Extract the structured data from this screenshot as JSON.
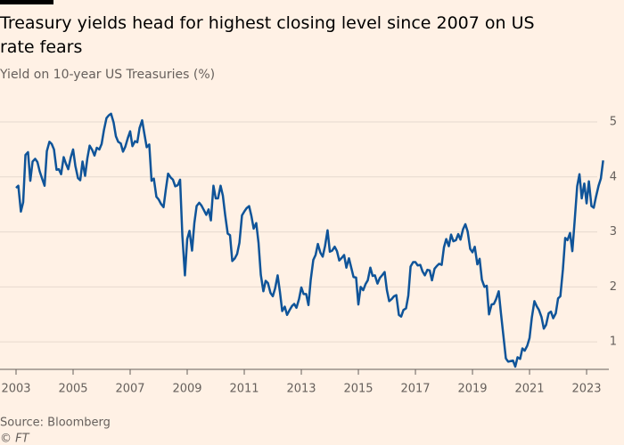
{
  "chart_data": {
    "type": "line",
    "title": "Treasury yields head for highest closing level since 2007 on US rate fears",
    "subtitle": "Yield on 10-year US Treasuries (%)",
    "source": "Source: Bloomberg",
    "credit": "© FT",
    "x": [
      2003.0,
      2003.08,
      2003.17,
      2003.25,
      2003.33,
      2003.42,
      2003.5,
      2003.58,
      2003.67,
      2003.75,
      2003.83,
      2003.92,
      2004.0,
      2004.08,
      2004.17,
      2004.25,
      2004.33,
      2004.42,
      2004.5,
      2004.58,
      2004.67,
      2004.75,
      2004.83,
      2004.92,
      2005.0,
      2005.08,
      2005.17,
      2005.25,
      2005.33,
      2005.42,
      2005.5,
      2005.58,
      2005.67,
      2005.75,
      2005.83,
      2005.92,
      2006.0,
      2006.08,
      2006.17,
      2006.25,
      2006.33,
      2006.42,
      2006.5,
      2006.58,
      2006.67,
      2006.75,
      2006.83,
      2006.92,
      2007.0,
      2007.08,
      2007.17,
      2007.25,
      2007.33,
      2007.42,
      2007.5,
      2007.58,
      2007.67,
      2007.75,
      2007.83,
      2007.92,
      2008.0,
      2008.08,
      2008.17,
      2008.25,
      2008.33,
      2008.42,
      2008.5,
      2008.58,
      2008.67,
      2008.75,
      2008.83,
      2008.92,
      2009.0,
      2009.08,
      2009.17,
      2009.25,
      2009.33,
      2009.42,
      2009.5,
      2009.58,
      2009.67,
      2009.75,
      2009.83,
      2009.92,
      2010.0,
      2010.08,
      2010.17,
      2010.25,
      2010.33,
      2010.42,
      2010.5,
      2010.58,
      2010.67,
      2010.75,
      2010.83,
      2010.92,
      2011.0,
      2011.08,
      2011.17,
      2011.25,
      2011.33,
      2011.42,
      2011.5,
      2011.58,
      2011.67,
      2011.75,
      2011.83,
      2011.92,
      2012.0,
      2012.08,
      2012.17,
      2012.25,
      2012.33,
      2012.42,
      2012.5,
      2012.58,
      2012.67,
      2012.75,
      2012.83,
      2012.92,
      2013.0,
      2013.08,
      2013.17,
      2013.25,
      2013.33,
      2013.42,
      2013.5,
      2013.58,
      2013.67,
      2013.75,
      2013.83,
      2013.92,
      2014.0,
      2014.08,
      2014.17,
      2014.25,
      2014.33,
      2014.42,
      2014.5,
      2014.58,
      2014.67,
      2014.75,
      2014.83,
      2014.92,
      2015.0,
      2015.08,
      2015.17,
      2015.25,
      2015.33,
      2015.42,
      2015.5,
      2015.58,
      2015.67,
      2015.75,
      2015.83,
      2015.92,
      2016.0,
      2016.08,
      2016.17,
      2016.25,
      2016.33,
      2016.42,
      2016.5,
      2016.58,
      2016.67,
      2016.75,
      2016.83,
      2016.92,
      2017.0,
      2017.08,
      2017.17,
      2017.25,
      2017.33,
      2017.42,
      2017.5,
      2017.58,
      2017.67,
      2017.75,
      2017.83,
      2017.92,
      2018.0,
      2018.08,
      2018.17,
      2018.25,
      2018.33,
      2018.42,
      2018.5,
      2018.58,
      2018.67,
      2018.75,
      2018.83,
      2018.92,
      2019.0,
      2019.08,
      2019.17,
      2019.25,
      2019.33,
      2019.42,
      2019.5,
      2019.58,
      2019.67,
      2019.75,
      2019.83,
      2019.92,
      2020.0,
      2020.08,
      2020.17,
      2020.25,
      2020.33,
      2020.42,
      2020.5,
      2020.58,
      2020.67,
      2020.75,
      2020.83,
      2020.92,
      2021.0,
      2021.08,
      2021.17,
      2021.25,
      2021.33,
      2021.42,
      2021.5,
      2021.58,
      2021.67,
      2021.75,
      2021.83,
      2021.92,
      2022.0,
      2022.08,
      2022.17,
      2022.25,
      2022.33,
      2022.42,
      2022.5,
      2022.58,
      2022.67,
      2022.75,
      2022.83,
      2022.92,
      2023.0,
      2023.08,
      2023.17,
      2023.25,
      2023.33,
      2023.42,
      2023.5,
      2023.58
    ],
    "series": [
      {
        "name": "10-year yield",
        "color": "#0f5499",
        "values": [
          3.8,
          3.84,
          3.37,
          3.54,
          4.4,
          4.45,
          3.93,
          4.28,
          4.33,
          4.27,
          4.1,
          3.96,
          3.84,
          4.47,
          4.64,
          4.6,
          4.5,
          4.13,
          4.14,
          4.05,
          4.36,
          4.24,
          4.14,
          4.36,
          4.5,
          4.2,
          3.98,
          3.94,
          4.28,
          4.02,
          4.34,
          4.57,
          4.49,
          4.39,
          4.53,
          4.5,
          4.6,
          4.85,
          5.07,
          5.12,
          5.15,
          4.99,
          4.74,
          4.64,
          4.61,
          4.46,
          4.55,
          4.71,
          4.83,
          4.56,
          4.65,
          4.63,
          4.89,
          5.03,
          4.78,
          4.54,
          4.59,
          3.93,
          3.97,
          3.64,
          3.59,
          3.51,
          3.45,
          3.77,
          4.06,
          3.99,
          3.95,
          3.83,
          3.85,
          3.95,
          2.93,
          2.21,
          2.87,
          3.02,
          2.66,
          3.16,
          3.47,
          3.53,
          3.48,
          3.4,
          3.31,
          3.41,
          3.21,
          3.84,
          3.61,
          3.61,
          3.84,
          3.66,
          3.31,
          2.97,
          2.94,
          2.47,
          2.52,
          2.6,
          2.8,
          3.3,
          3.37,
          3.43,
          3.47,
          3.29,
          3.06,
          3.16,
          2.8,
          2.22,
          1.92,
          2.11,
          2.07,
          1.89,
          1.83,
          1.97,
          2.21,
          1.91,
          1.56,
          1.64,
          1.49,
          1.57,
          1.65,
          1.69,
          1.62,
          1.78,
          1.99,
          1.87,
          1.87,
          1.67,
          2.13,
          2.49,
          2.58,
          2.78,
          2.62,
          2.55,
          2.74,
          3.03,
          2.64,
          2.66,
          2.73,
          2.65,
          2.48,
          2.53,
          2.58,
          2.35,
          2.52,
          2.35,
          2.18,
          2.17,
          1.68,
          2.0,
          1.94,
          2.05,
          2.12,
          2.35,
          2.2,
          2.21,
          2.06,
          2.16,
          2.21,
          2.27,
          1.94,
          1.74,
          1.78,
          1.83,
          1.85,
          1.49,
          1.46,
          1.58,
          1.61,
          1.84,
          2.37,
          2.45,
          2.45,
          2.39,
          2.4,
          2.28,
          2.21,
          2.31,
          2.3,
          2.12,
          2.33,
          2.38,
          2.42,
          2.4,
          2.72,
          2.87,
          2.74,
          2.95,
          2.83,
          2.85,
          2.96,
          2.86,
          3.05,
          3.14,
          3.01,
          2.69,
          2.63,
          2.73,
          2.41,
          2.51,
          2.13,
          2.0,
          2.02,
          1.5,
          1.68,
          1.69,
          1.78,
          1.92,
          1.51,
          1.13,
          0.7,
          0.64,
          0.65,
          0.66,
          0.55,
          0.72,
          0.69,
          0.88,
          0.84,
          0.93,
          1.07,
          1.44,
          1.74,
          1.65,
          1.58,
          1.45,
          1.24,
          1.31,
          1.52,
          1.55,
          1.43,
          1.52,
          1.79,
          1.83,
          2.32,
          2.89,
          2.85,
          2.98,
          2.65,
          3.19,
          3.83,
          4.05,
          3.61,
          3.88,
          3.52,
          3.92,
          3.47,
          3.44,
          3.64,
          3.84,
          3.97,
          4.3
        ]
      }
    ],
    "xlim": [
      2002.5,
      2023.78
    ],
    "xticks": [
      2003,
      2005,
      2007,
      2009,
      2011,
      2013,
      2015,
      2017,
      2019,
      2021,
      2023
    ],
    "ylim": [
      0.5,
      5.3
    ],
    "yticks": [
      1,
      2,
      3,
      4,
      5
    ],
    "grid": true
  }
}
